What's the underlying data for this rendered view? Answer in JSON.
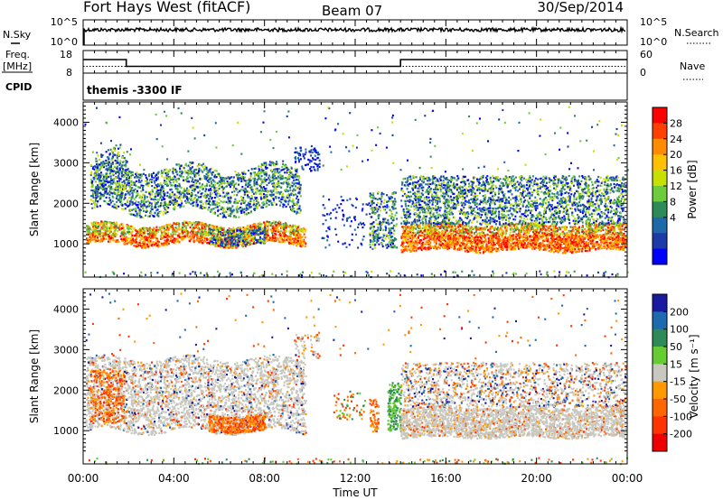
{
  "header": {
    "station": "Fort Hays West (fitACF)",
    "beam": "Beam 07",
    "date": "30/Sep/2014"
  },
  "noise_panel": {
    "left_label": "N.Sky",
    "left_ticks": [
      "10^5",
      "10^0"
    ],
    "right_label": "N.Search",
    "right_ticks": [
      "10^5",
      "10^0"
    ]
  },
  "freq_panel": {
    "left_label_line1": "Freq.",
    "left_label_line2": "[MHz]",
    "left_ticks": [
      "18",
      "8"
    ],
    "right_label": "Nave",
    "right_ticks": [
      "60",
      "0"
    ],
    "series": {
      "frequency_mhz": {
        "x_hours": [
          0,
          1.9,
          1.9,
          14.0,
          14.0,
          24
        ],
        "values": [
          14.0,
          14.0,
          11.0,
          11.0,
          14.0,
          14.0
        ]
      },
      "nave": {
        "x_hours": [
          0,
          24
        ],
        "values": [
          18,
          18
        ]
      }
    }
  },
  "cpid": {
    "label": "CPID",
    "value": "themis -3300 IF"
  },
  "power_panel": {
    "ylabel": "Slant Range [km]",
    "yticks": [
      "4000",
      "3000",
      "2000",
      "1000"
    ],
    "colorbar_label": "Power [dB]",
    "colorbar_ticks": [
      "28",
      "24",
      "20",
      "16",
      "12",
      "8",
      "4"
    ],
    "colorbar_colors": [
      "#ff0000",
      "#ff4000",
      "#ff8c00",
      "#ffc000",
      "#c8e000",
      "#6ecb3c",
      "#2e8b57",
      "#1e6aa8",
      "#1c3aa8",
      "#0000ff"
    ]
  },
  "velocity_panel": {
    "ylabel": "Slant Range [km]",
    "yticks": [
      "4000",
      "3000",
      "2000",
      "1000"
    ],
    "colorbar_label": "Velocity [m s⁻¹]",
    "colorbar_ticks": [
      "200",
      "100",
      "50",
      "15",
      "-15",
      "-50",
      "-100",
      "-200"
    ],
    "colorbar_colors": [
      "#1a1aa0",
      "#1e6ab0",
      "#2e8b57",
      "#66cc33",
      "#c8c8c0",
      "#ff9900",
      "#ff6600",
      "#ff3300",
      "#ee0000"
    ]
  },
  "x_axis": {
    "label": "Time UT",
    "ticks": [
      "00:00",
      "04:00",
      "08:00",
      "12:00",
      "16:00",
      "20:00",
      "00:00"
    ]
  },
  "chart_data": [
    {
      "type": "line",
      "title": "Fort Hays West (fitACF)",
      "series": [
        {
          "name": "N.Sky",
          "note_shape": "near-constant high noise"
        }
      ],
      "x_range_hours": [
        0,
        24
      ]
    },
    {
      "type": "line",
      "series": [
        {
          "name": "Freq.",
          "x": [
            0,
            1.9,
            1.9,
            14.0,
            14.0,
            24
          ],
          "values": [
            14,
            14,
            11,
            11,
            14,
            14
          ]
        },
        {
          "name": "Nave",
          "x": [
            0,
            24
          ],
          "values": [
            18,
            18
          ]
        }
      ],
      "ylim_left": [
        8,
        18
      ],
      "ylim_right": [
        0,
        60
      ]
    },
    {
      "type": "heatmap",
      "xlabel": "Time UT",
      "ylabel": "Slant Range [km]",
      "ylim": [
        180,
        4500
      ],
      "x_range_hours": [
        0,
        24
      ],
      "colorbar": {
        "label": "Power [dB]",
        "ticks": [
          28,
          24,
          20,
          16,
          12,
          8,
          4
        ]
      },
      "features": [
        {
          "kind": "band",
          "t": [
            0,
            10
          ],
          "range_km": [
            1000,
            1500
          ],
          "power_db": 25
        },
        {
          "kind": "band",
          "t": [
            0.5,
            9.5
          ],
          "range_km": [
            2000,
            2900
          ],
          "power_db": 10
        },
        {
          "kind": "patch",
          "t": [
            5.5,
            8.0
          ],
          "range_km": [
            1000,
            1400
          ],
          "power_db": 10
        },
        {
          "kind": "band",
          "t": [
            14,
            24
          ],
          "range_km": [
            900,
            1500
          ],
          "power_db": 22
        },
        {
          "kind": "band",
          "t": [
            14,
            24
          ],
          "range_km": [
            1500,
            2700
          ],
          "power_db": 10
        }
      ]
    },
    {
      "type": "heatmap",
      "xlabel": "Time UT",
      "ylabel": "Slant Range [km]",
      "ylim": [
        180,
        4500
      ],
      "x_range_hours": [
        0,
        24
      ],
      "colorbar": {
        "label": "Velocity [m s⁻¹]",
        "ticks": [
          200,
          100,
          50,
          15,
          -15,
          -50,
          -100,
          -200
        ]
      },
      "features": [
        {
          "kind": "band",
          "t": [
            0,
            10
          ],
          "range_km": [
            1000,
            2800
          ],
          "velocity": -10
        },
        {
          "kind": "patch",
          "t": [
            5.5,
            8.0
          ],
          "range_km": [
            1000,
            1400
          ],
          "velocity": -150
        },
        {
          "kind": "patch",
          "t": [
            12.7,
            13.8
          ],
          "range_km": [
            1000,
            2000
          ],
          "velocity": 60
        },
        {
          "kind": "band",
          "t": [
            14,
            24
          ],
          "range_km": [
            900,
            1600
          ],
          "velocity": 0
        }
      ]
    }
  ]
}
